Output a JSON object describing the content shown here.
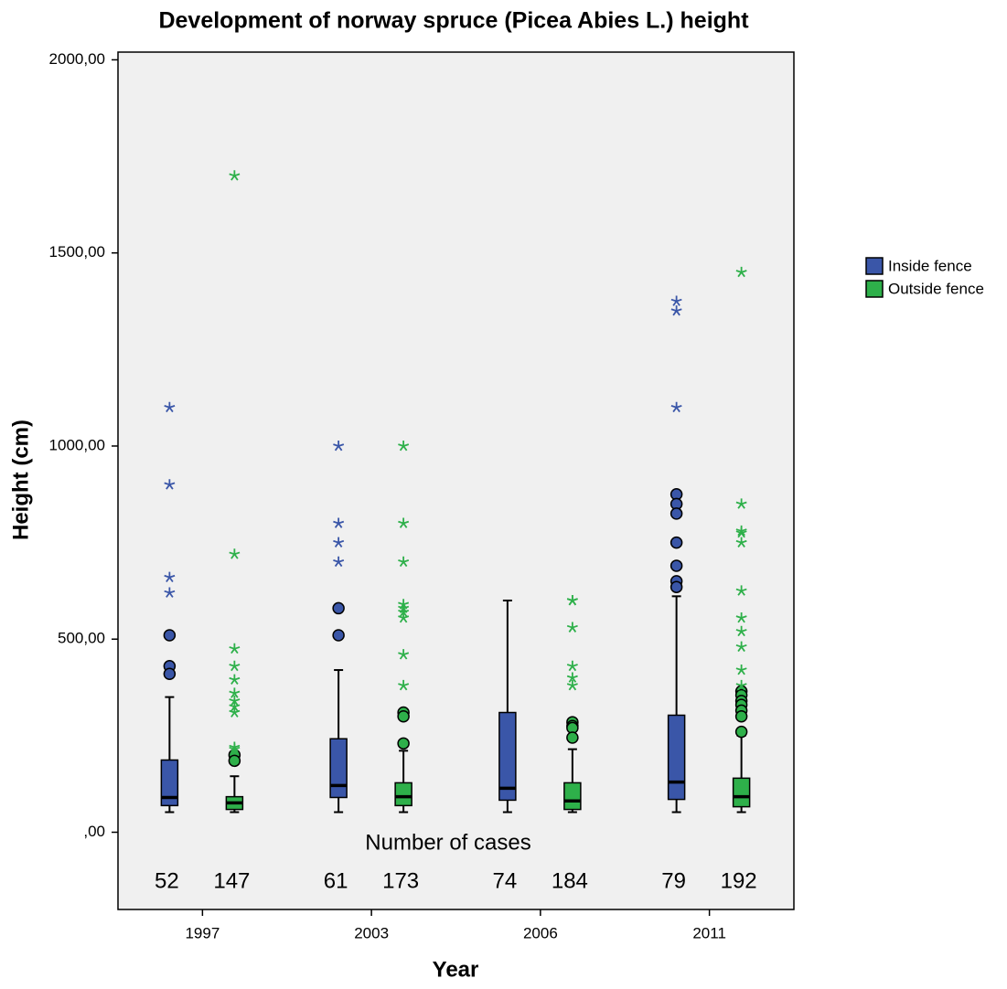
{
  "chart_data": {
    "type": "boxplot",
    "title": "Development of norway spruce (Picea Abies L.) height",
    "xlabel": "Year",
    "ylabel": "Height (cm)",
    "annotation": "Number of cases",
    "categories": [
      "1997",
      "2003",
      "2006",
      "2011"
    ],
    "ylim": [
      -200,
      2020
    ],
    "yticks": [
      {
        "value": 0,
        "label": ",00"
      },
      {
        "value": 500,
        "label": "500,00"
      },
      {
        "value": 1000,
        "label": "1000,00"
      },
      {
        "value": 1500,
        "label": "1500,00"
      },
      {
        "value": 2000,
        "label": "2000,00"
      }
    ],
    "series": [
      {
        "name": "Inside fence",
        "color": "#3a56a8",
        "n": [
          52,
          61,
          74,
          79
        ],
        "boxes": [
          {
            "whislo": 52,
            "q1": 69,
            "med": 90,
            "q3": 187,
            "whishi": 350,
            "outliers": [
              510,
              430,
              410
            ],
            "extremes": [
              1100,
              900,
              660,
              620
            ]
          },
          {
            "whislo": 52,
            "q1": 90,
            "med": 121,
            "q3": 242,
            "whishi": 420,
            "outliers": [
              580,
              510
            ],
            "extremes": [
              1000,
              800,
              750,
              700
            ]
          },
          {
            "whislo": 52,
            "q1": 83,
            "med": 114,
            "q3": 310,
            "whishi": 600,
            "outliers": [],
            "extremes": []
          },
          {
            "whislo": 52,
            "q1": 85,
            "med": 130,
            "q3": 303,
            "whishi": 611,
            "outliers": [
              875,
              850,
              825,
              750,
              690,
              650,
              635
            ],
            "extremes": [
              1375,
              1350,
              1100
            ]
          }
        ]
      },
      {
        "name": "Outside fence",
        "color": "#2eb04a",
        "n": [
          147,
          173,
          184,
          192
        ],
        "boxes": [
          {
            "whislo": 52,
            "q1": 59,
            "med": 76,
            "q3": 92,
            "whishi": 145,
            "outliers": [
              200,
              185
            ],
            "extremes": [
              1700,
              720,
              475,
              430,
              395,
              360,
              340,
              325,
              310,
              220,
              215
            ]
          },
          {
            "whislo": 52,
            "q1": 69,
            "med": 92,
            "q3": 128,
            "whishi": 211,
            "outliers": [
              310,
              300,
              230
            ],
            "extremes": [
              1000,
              800,
              700,
              590,
              580,
              570,
              555,
              460,
              380
            ]
          },
          {
            "whislo": 52,
            "q1": 59,
            "med": 81,
            "q3": 128,
            "whishi": 215,
            "outliers": [
              285,
              275,
              270,
              245
            ],
            "extremes": [
              600,
              600,
              530,
              430,
              400,
              380
            ]
          },
          {
            "whislo": 52,
            "q1": 66,
            "med": 92,
            "q3": 140,
            "whishi": 250,
            "outliers": [
              365,
              355,
              340,
              330,
              315,
              300,
              260
            ],
            "extremes": [
              1450,
              850,
              780,
              775,
              750,
              625,
              555,
              520,
              480,
              420,
              380
            ]
          }
        ]
      }
    ]
  }
}
